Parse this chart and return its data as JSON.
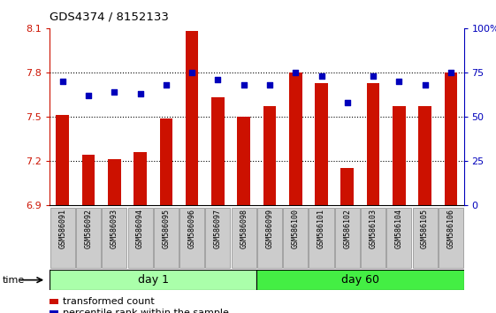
{
  "title": "GDS4374 / 8152133",
  "samples": [
    "GSM586091",
    "GSM586092",
    "GSM586093",
    "GSM586094",
    "GSM586095",
    "GSM586096",
    "GSM586097",
    "GSM586098",
    "GSM586099",
    "GSM586100",
    "GSM586101",
    "GSM586102",
    "GSM586103",
    "GSM586104",
    "GSM586105",
    "GSM586106"
  ],
  "bar_values": [
    7.51,
    7.24,
    7.21,
    7.26,
    7.49,
    8.08,
    7.63,
    7.5,
    7.57,
    7.8,
    7.73,
    7.15,
    7.73,
    7.57,
    7.57,
    7.8
  ],
  "percentile_values": [
    70,
    62,
    64,
    63,
    68,
    75,
    71,
    68,
    68,
    75,
    73,
    58,
    73,
    70,
    68,
    75
  ],
  "ymin": 6.9,
  "ymax": 8.1,
  "ylim_right": [
    0,
    100
  ],
  "yticks_left": [
    6.9,
    7.2,
    7.5,
    7.8,
    8.1
  ],
  "yticks_right": [
    0,
    25,
    50,
    75,
    100
  ],
  "ytick_labels_right": [
    "0",
    "25",
    "50",
    "75",
    "100%"
  ],
  "bar_color": "#cc1100",
  "dot_color": "#0000bb",
  "day1_color": "#aaffaa",
  "day60_color": "#44ee44",
  "day1_samples": 8,
  "day60_samples": 8,
  "legend_bar_label": "transformed count",
  "legend_dot_label": "percentile rank within the sample",
  "bar_width": 0.5,
  "time_label": "time"
}
